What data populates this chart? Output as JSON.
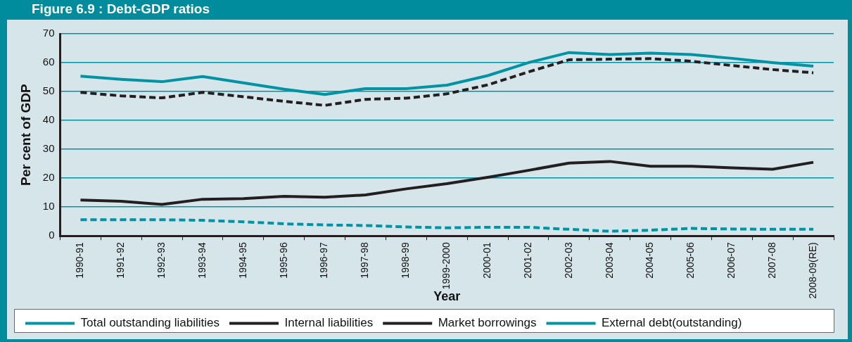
{
  "chart_data": {
    "type": "line",
    "title": "Figure 6.9 : Debt-GDP ratios",
    "xlabel": "Year",
    "ylabel": "Per cent of GDP",
    "categories": [
      "1990-91",
      "1991-92",
      "1992-93",
      "1993-94",
      "1994-95",
      "1995-96",
      "1996-97",
      "1997-98",
      "1998-99",
      "1999-2000",
      "2000-01",
      "2001-02",
      "2002-03",
      "2003-04",
      "2004-05",
      "2005-06",
      "2006-07",
      "2007-08",
      "2008-09(RE)"
    ],
    "series": [
      {
        "name": "Total outstanding liabilities",
        "color": "#0093a3",
        "line_style": "solid",
        "values": [
          55.3,
          54.2,
          53.4,
          55.2,
          53,
          50.8,
          49,
          51,
          51,
          52.2,
          55.5,
          60,
          63.5,
          62.8,
          63.3,
          62.8,
          61.5,
          60,
          58.8
        ]
      },
      {
        "name": "Internal liabilities",
        "color": "#231f20",
        "line_style": "dashed",
        "values": [
          49.7,
          48.5,
          47.8,
          49.7,
          48.2,
          46.6,
          45.2,
          47.3,
          47.7,
          49.2,
          52.3,
          56.8,
          61,
          61.2,
          61.4,
          60.5,
          59,
          57.6,
          56.5
        ]
      },
      {
        "name": "Market borrowings",
        "color": "#231f20",
        "line_style": "solid",
        "values": [
          12.4,
          12,
          10.9,
          12.7,
          12.9,
          13.7,
          13.4,
          14.2,
          16.3,
          18.1,
          20.3,
          22.7,
          25.2,
          25.8,
          24.1,
          24.1,
          23.6,
          23.1,
          25.5
        ]
      },
      {
        "name": "External debt(outstanding)",
        "color": "#0093a3",
        "line_style": "dashed",
        "values": [
          5.6,
          5.6,
          5.6,
          5.4,
          4.9,
          4.2,
          3.8,
          3.6,
          3.1,
          2.8,
          3,
          3,
          2.3,
          1.6,
          2,
          2.6,
          2.4,
          2.3,
          2.3
        ]
      }
    ],
    "ylim": [
      0,
      70
    ],
    "yticks": [
      0,
      10,
      20,
      30,
      40,
      50,
      60,
      70
    ],
    "grid": "y",
    "legend": "bottom",
    "marker": "none"
  }
}
